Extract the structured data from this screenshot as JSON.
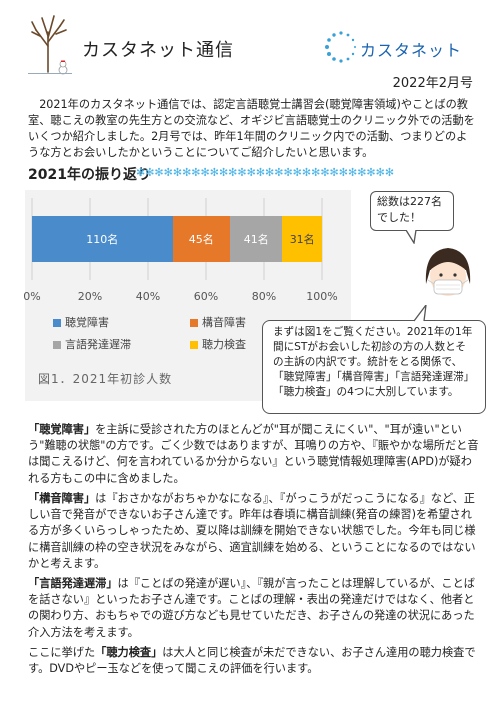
{
  "header": {
    "title": "カスタネット通信",
    "logo_text": "カスタネット",
    "date": "2022年2月号"
  },
  "intro": "2021年のカスタネット通信では、認定言語聴覚士講習会(聴覚障害領域)やことばの教室、聴こえの教室の先生方との交流など、オギジビ言語聴覚士のクリニック外での活動をいくつか紹介しました。2月号では、昨年1年間のクリニック内での活動、つまりどのような方とお会いしたかということについてご紹介したいと思います。",
  "section": {
    "title": "2021年の振り返り",
    "stars": "✻✻✻✻✻✻✻✻✻✻✻✻✻✻✻✻✻✻✻✻✻✻✻✻✻✻✻✻"
  },
  "chart_data": {
    "type": "bar",
    "orientation": "horizontal-stacked-100",
    "series": [
      {
        "name": "聴覚障害",
        "value": 110,
        "label": "110名",
        "color": "#4a8ccb"
      },
      {
        "name": "構音障害",
        "value": 45,
        "label": "45名",
        "color": "#e6782a"
      },
      {
        "name": "言語発達遅滞",
        "value": 41,
        "label": "41名",
        "color": "#a6a6a6"
      },
      {
        "name": "聴力検査",
        "value": 31,
        "label": "31名",
        "color": "#ffc000"
      }
    ],
    "total": 227,
    "xticks": [
      "0%",
      "20%",
      "40%",
      "60%",
      "80%",
      "100%"
    ],
    "xlim": [
      0,
      100
    ],
    "caption": "図1．2021年初診人数",
    "legend_position": "bottom"
  },
  "bubble_top": "総数は227名でした！",
  "bubble_main": "まずは図1をご覧ください。2021年の1年間にSTがお会いした初診の方の人数とその主訴の内訳です。統計をとる関係で、「聴覚障害」「構音障害」「言語発達遅滞」「聴力検査」の4つに大別しています。",
  "paragraphs": [
    {
      "kw": "「聴覚障害」",
      "text": "を主訴に受診された方のほとんどが\"耳が聞こえにくい\"、\"耳が遠い\"という\"難聴の状態\"の方です。ごく少数ではありますが、耳鳴りの方や、『賑やかな場所だと音は聞こえるけど、何を言われているか分からない』という聴覚情報処理障害(APD)が疑われる方もこの中に含めました。"
    },
    {
      "kw": "「構音障害」",
      "text": "は『おさかながおちゃかなになる』、『がっこうがだっこうになる』など、正しい音で発音ができないお子さん達です。昨年は春頃に構音訓練(発音の練習)を希望される方が多くいらっしゃったため、夏以降は訓練を開始できない状態でした。今年も同じ様に構音訓練の枠の空き状況をみながら、適宜訓練を始める、ということになるのではないかと考えます。"
    },
    {
      "kw": "「言語発達遅滞」",
      "text": "は『ことばの発達が遅い』、『親が言ったことは理解しているが、ことばを話さない』といったお子さん達です。ことばの理解・表出の発達だけではなく、他者との関わり方、おもちゃでの遊び方なども見せていただき、お子さんの発達の状況にあった介入方法を考えます。"
    },
    {
      "pre": "ここに挙げた",
      "kw": "「聴力検査」",
      "text": "は大人と同じ検査が未だできない、お子さん達用の聴力検査です。DVDやピー玉などを使って聞こえの評価を行います。"
    }
  ]
}
